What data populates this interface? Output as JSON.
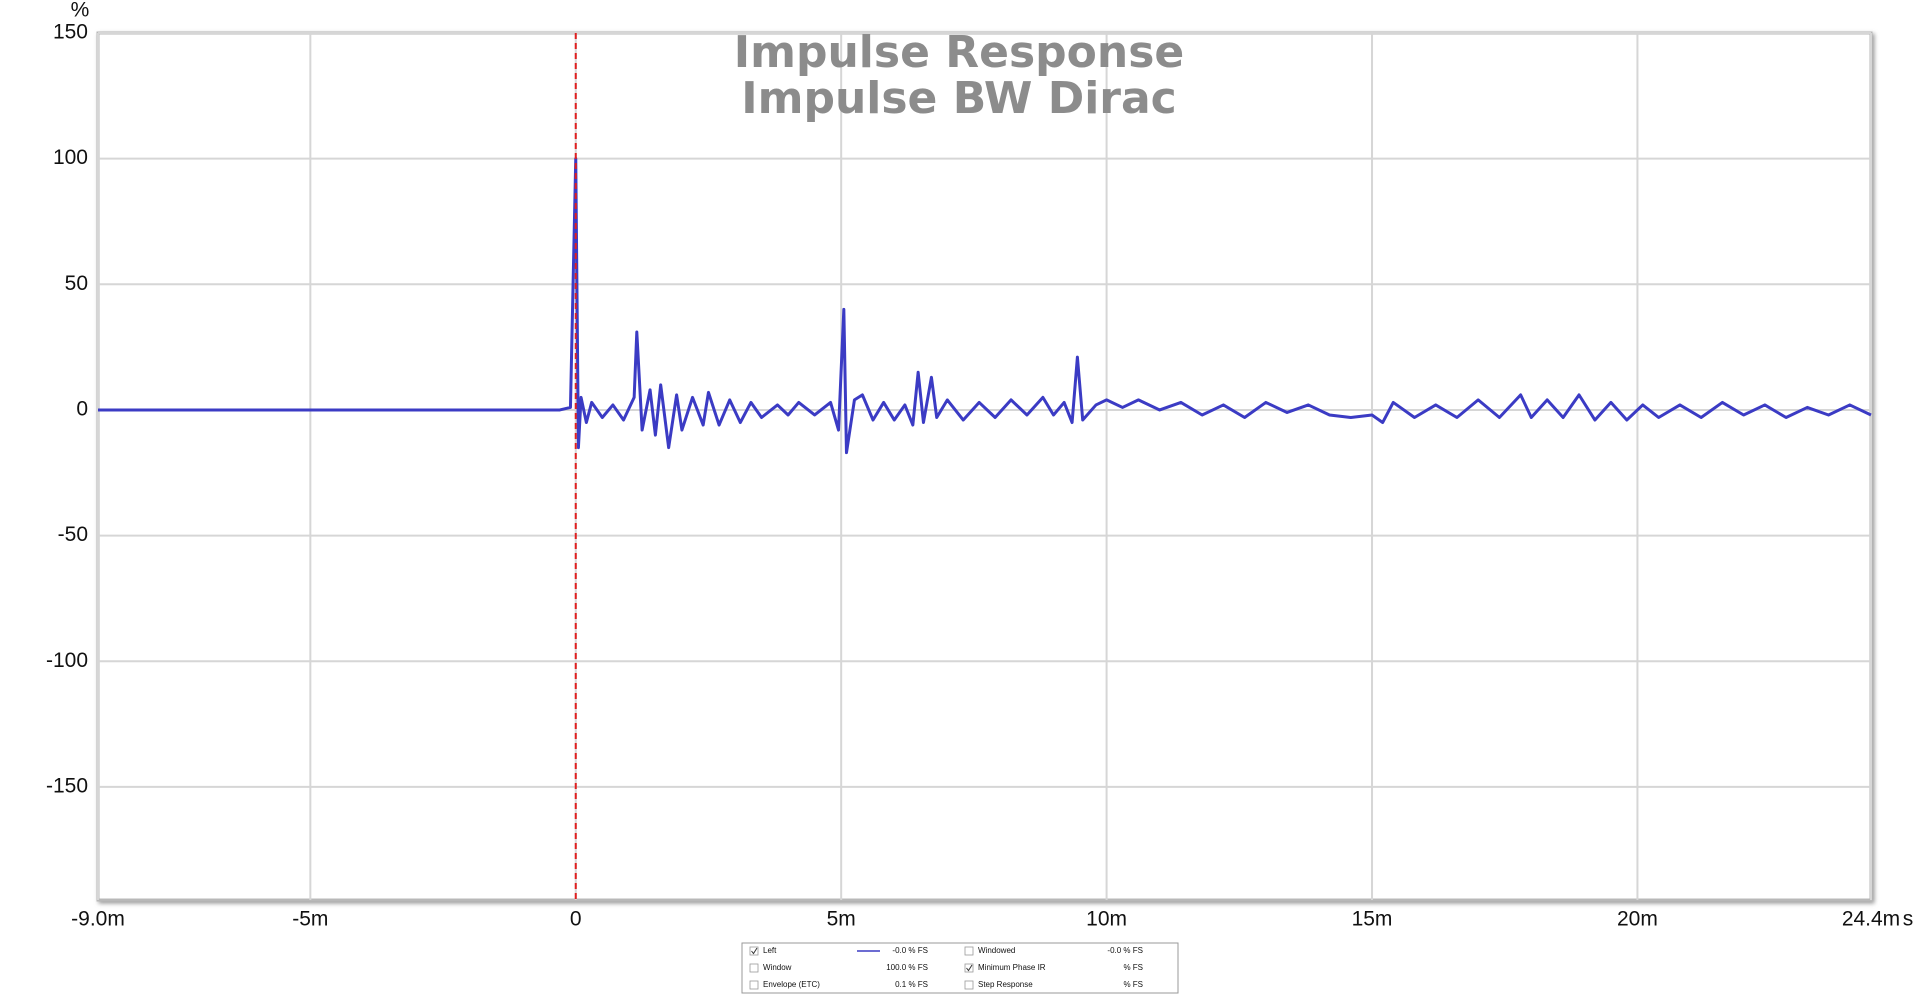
{
  "chart_data": {
    "type": "line",
    "title": "Impulse Response",
    "subtitle": "Impulse BW Dirac",
    "y_unit": "%",
    "x_unit": "s",
    "xlim": [
      -9.0,
      24.4
    ],
    "xticks": [
      {
        "value": -9.0,
        "label": "-9.0m"
      },
      {
        "value": -5,
        "label": "-5m"
      },
      0,
      {
        "value": 5,
        "label": "5m"
      },
      {
        "value": 10,
        "label": "10m"
      },
      {
        "value": 15,
        "label": "15m"
      },
      {
        "value": 20,
        "label": "20m"
      },
      {
        "value": 24.4,
        "label": "24.4m"
      }
    ],
    "ylim": [
      -195,
      150
    ],
    "yticks": [
      -150,
      -100,
      -50,
      0,
      50,
      100,
      150
    ],
    "grid": true,
    "markers": [
      {
        "x": 0,
        "color": "#e02020",
        "style": "dashed"
      }
    ],
    "series": [
      {
        "name": "Left",
        "color": "#3b3bc4",
        "checked": true,
        "reading": "-0.0 % FS",
        "x": [
          -9.0,
          -0.3,
          -0.1,
          0,
          0.05,
          0.1,
          0.2,
          0.3,
          0.5,
          0.7,
          0.9,
          1.1,
          1.15,
          1.25,
          1.4,
          1.5,
          1.6,
          1.75,
          1.9,
          2.0,
          2.2,
          2.4,
          2.5,
          2.7,
          2.9,
          3.1,
          3.3,
          3.5,
          3.8,
          4.0,
          4.2,
          4.5,
          4.8,
          4.95,
          5.05,
          5.1,
          5.25,
          5.4,
          5.6,
          5.8,
          6.0,
          6.2,
          6.35,
          6.45,
          6.55,
          6.7,
          6.8,
          7.0,
          7.3,
          7.6,
          7.9,
          8.2,
          8.5,
          8.8,
          9.0,
          9.2,
          9.35,
          9.45,
          9.55,
          9.8,
          10.0,
          10.3,
          10.6,
          11,
          11.4,
          11.8,
          12.2,
          12.6,
          13,
          13.4,
          13.8,
          14.2,
          14.6,
          15,
          15.2,
          15.4,
          15.8,
          16.2,
          16.6,
          17,
          17.4,
          17.8,
          18,
          18.3,
          18.6,
          18.9,
          19.2,
          19.5,
          19.8,
          20.1,
          20.4,
          20.8,
          21.2,
          21.6,
          22.0,
          22.4,
          22.8,
          23.2,
          23.6,
          24.0,
          24.4
        ],
        "values": [
          0,
          0,
          1,
          100,
          -15,
          5,
          -5,
          3,
          -3,
          2,
          -4,
          5,
          31,
          -8,
          8,
          -10,
          10,
          -15,
          6,
          -8,
          5,
          -6,
          7,
          -6,
          4,
          -5,
          3,
          -3,
          2,
          -2,
          3,
          -2,
          3,
          -8,
          40,
          -17,
          4,
          6,
          -4,
          3,
          -4,
          2,
          -6,
          15,
          -5,
          13,
          -3,
          4,
          -4,
          3,
          -3,
          4,
          -2,
          5,
          -2,
          3,
          -5,
          21,
          -4,
          2,
          4,
          1,
          4,
          0,
          3,
          -2,
          2,
          -3,
          3,
          -1,
          2,
          -2,
          -3,
          -2,
          -5,
          3,
          -3,
          2,
          -3,
          4,
          -3,
          6,
          -3,
          4,
          -3,
          6,
          -4,
          3,
          -4,
          2,
          -3,
          2,
          -3,
          3,
          -2,
          2,
          -3,
          1,
          -2,
          2,
          -2
        ]
      }
    ],
    "legend_panel": [
      {
        "label": "Windowed",
        "checked": false,
        "reading": "-0.0 % FS"
      },
      {
        "label": "Window",
        "checked": false,
        "reading": "100.0 % FS"
      },
      {
        "label": "Minimum Phase IR",
        "checked": true,
        "reading": "% FS"
      },
      {
        "label": "Envelope (ETC)",
        "checked": false,
        "reading": "0.1 % FS"
      },
      {
        "label": "Step Response",
        "checked": false,
        "reading": "% FS"
      }
    ]
  }
}
